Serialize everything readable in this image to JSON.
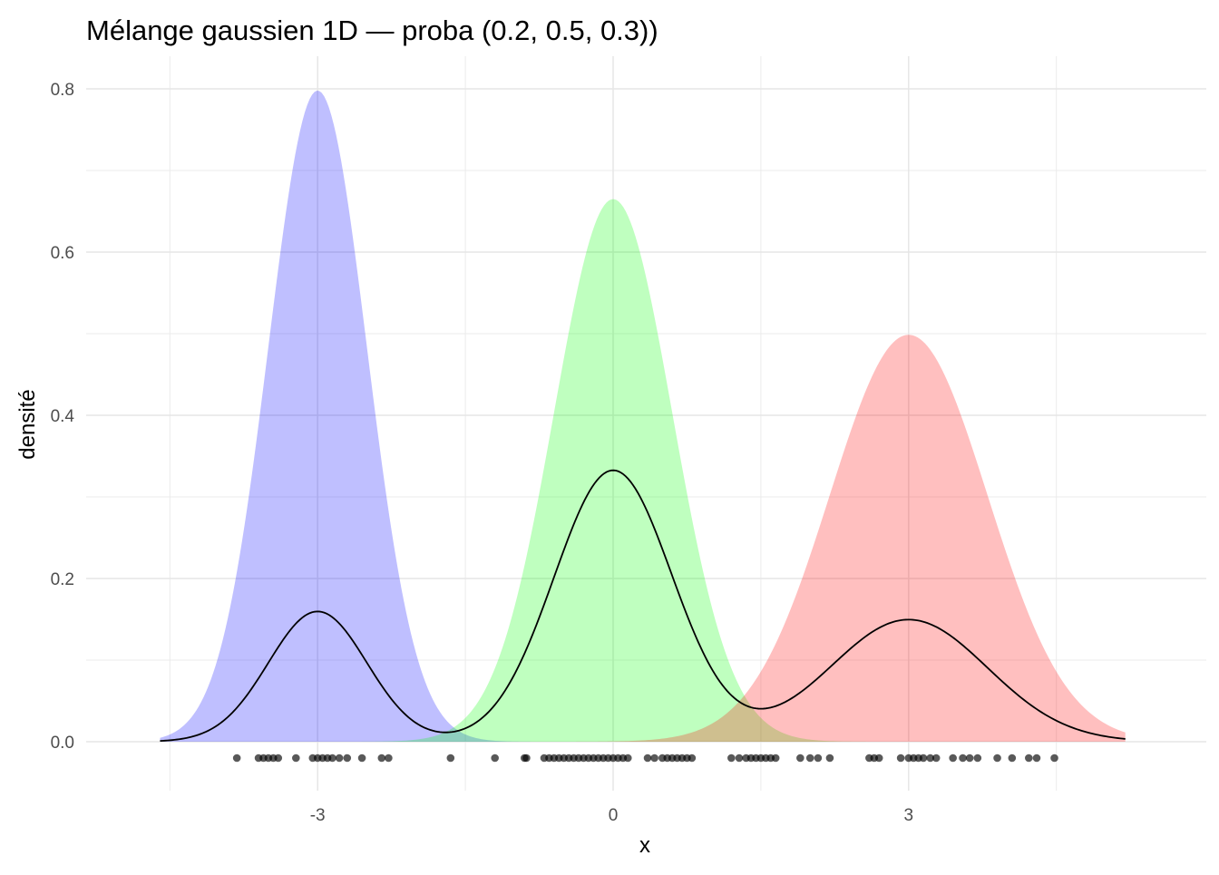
{
  "chart_data": {
    "type": "area",
    "title": "Mélange gaussien 1D — proba (0.2, 0.5, 0.3))",
    "xlabel": "x",
    "ylabel": "densité",
    "xlim": [
      -4.6,
      5.2
    ],
    "ylim": [
      0,
      0.8
    ],
    "x_ticks": [
      -3,
      0,
      3
    ],
    "x_tick_labels": [
      "-3",
      "0",
      "3"
    ],
    "y_ticks": [
      0,
      0.2,
      0.4,
      0.6,
      0.8
    ],
    "y_tick_labels": [
      "0.0",
      "0.2",
      "0.4",
      "0.6",
      "0.8"
    ],
    "grid": true,
    "legend": "none",
    "components": [
      {
        "mean": -3,
        "sd": 0.5,
        "weight": 0.2,
        "color": "#0000ff"
      },
      {
        "mean": 0,
        "sd": 0.6,
        "weight": 0.5,
        "color": "#00ff00"
      },
      {
        "mean": 3,
        "sd": 0.8,
        "weight": 0.3,
        "color": "#ff0000"
      }
    ],
    "fill_opacity": 0.25,
    "mixture_line_color": "#000000",
    "points_y": -0.02,
    "points_color": "#000000",
    "points": [
      -3.82,
      -3.6,
      -3.55,
      -3.5,
      -3.45,
      -3.4,
      -3.22,
      -3.05,
      -3.0,
      -2.95,
      -2.9,
      -2.85,
      -2.78,
      -2.7,
      -2.55,
      -2.35,
      -2.28,
      -1.65,
      -1.2,
      -0.9,
      -0.88,
      -0.7,
      -0.65,
      -0.6,
      -0.55,
      -0.5,
      -0.45,
      -0.4,
      -0.35,
      -0.3,
      -0.25,
      -0.2,
      -0.15,
      -0.1,
      -0.05,
      0.0,
      0.05,
      0.1,
      0.15,
      0.35,
      0.42,
      0.5,
      0.55,
      0.6,
      0.65,
      0.7,
      0.75,
      0.8,
      1.2,
      1.28,
      1.35,
      1.4,
      1.45,
      1.5,
      1.55,
      1.6,
      1.65,
      1.9,
      2.0,
      2.08,
      2.2,
      2.6,
      2.65,
      2.7,
      2.92,
      3.0,
      3.05,
      3.1,
      3.15,
      3.22,
      3.28,
      3.45,
      3.55,
      3.62,
      3.7,
      3.9,
      4.05,
      4.22,
      4.3,
      4.48
    ]
  }
}
